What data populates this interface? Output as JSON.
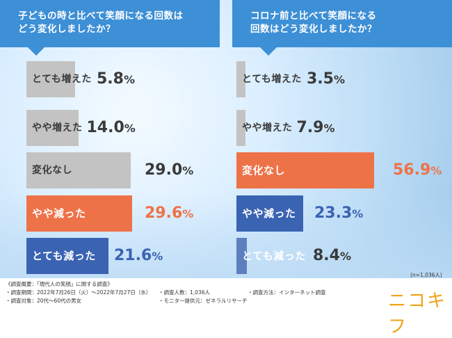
{
  "chart_data": [
    {
      "type": "bar",
      "title": "子どもの時と比べて笑顔になる回数は\nどう変化しましたか？",
      "categories": [
        "とても増えた",
        "やや増えた",
        "変化なし",
        "やや減った",
        "とても減った"
      ],
      "values": [
        5.8,
        14.0,
        29.0,
        29.6,
        21.6
      ],
      "value_labels": [
        {
          "num": "5.8",
          "pct": "%"
        },
        {
          "num": "14.0",
          "pct": "%"
        },
        {
          "num": "29.0",
          "pct": "%"
        },
        {
          "num": "29.6",
          "pct": "%"
        },
        {
          "num": "21.6",
          "pct": "%"
        }
      ],
      "bar_colors": [
        "#c3c3c3",
        "#c3c3c3",
        "#c3c3c3",
        "#ee7248",
        "#3a63b2"
      ],
      "value_colors": [
        "#3a3a3a",
        "#3a3a3a",
        "#3a3a3a",
        "#ee7248",
        "#3a63b2"
      ],
      "highlight": [
        false,
        false,
        false,
        true,
        true
      ],
      "xlim": [
        0,
        60
      ]
    },
    {
      "type": "bar",
      "title": "コロナ前と比べて笑顔になる\n回数はどう変化しましたか？",
      "categories": [
        "とても増えた",
        "やや増えた",
        "変化なし",
        "やや減った",
        "とても減った"
      ],
      "values": [
        3.5,
        7.9,
        56.9,
        23.3,
        8.4
      ],
      "value_labels": [
        {
          "num": "3.5",
          "pct": "%"
        },
        {
          "num": "7.9",
          "pct": "%"
        },
        {
          "num": "56.9",
          "pct": "%"
        },
        {
          "num": "23.3",
          "pct": "%"
        },
        {
          "num": "8.4",
          "pct": "%"
        }
      ],
      "bar_colors": [
        "#c3c3c3",
        "#c3c3c3",
        "#ee7248",
        "#3a63b2",
        "#5e7fbf"
      ],
      "value_colors": [
        "#3a3a3a",
        "#3a3a3a",
        "#ee7248",
        "#3a63b2",
        "#3a3a3a"
      ],
      "highlight": [
        false,
        false,
        true,
        true,
        true
      ],
      "xlim": [
        0,
        60
      ]
    }
  ],
  "sample_size": "(n=1,036人)",
  "footer": {
    "heading": "《調査概要：「現代人の笑顔」に関する調査》",
    "period": "・調査期間：2022年7月26日（火）〜2022年7月27日（水）",
    "count": "・調査人数：1,036人",
    "method": "・調査方法：インターネット調査",
    "target": "・調査対象：20代〜60代の男女",
    "provider": "・モニター提供元：ゼネラルリサーチ"
  },
  "logo_text": "ニコキフ"
}
